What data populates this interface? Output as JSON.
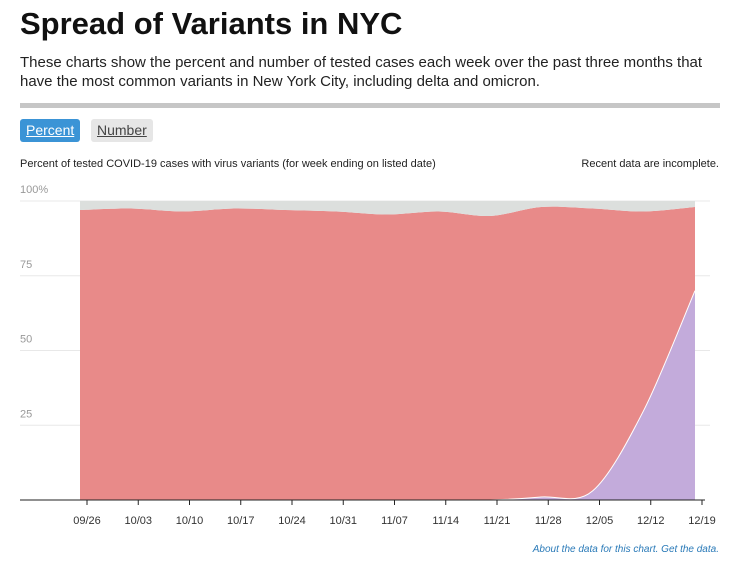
{
  "header": {
    "title": "Spread of Variants in NYC",
    "subtitle": "These charts show the percent and number of tested cases each week over the past three months that have the most common variants in New York City, including delta and omicron."
  },
  "toggles": {
    "percent_label": "Percent",
    "number_label": "Number",
    "active": "Percent"
  },
  "chart_label": "Percent of tested COVID-19 cases with virus variants (for week ending on listed date)",
  "chart_note": "Recent data are incomplete.",
  "footer": {
    "about": "About the data for this chart.",
    "get": "Get the data."
  },
  "colors": {
    "delta": "#e88a89",
    "omicron": "#c3abdb",
    "other": "#dcdfdd",
    "grid": "#e8e8e8",
    "axis": "#222222"
  },
  "chart_data": {
    "type": "area",
    "stacked": true,
    "x": [
      "09/26",
      "10/03",
      "10/10",
      "10/17",
      "10/24",
      "10/31",
      "11/07",
      "11/14",
      "11/21",
      "11/28",
      "12/05",
      "12/12",
      "12/19"
    ],
    "ylim": [
      0,
      100
    ],
    "yticks": [
      25,
      50,
      75,
      100
    ],
    "ytick_labels": [
      "25",
      "50",
      "75",
      "100%"
    ],
    "grid": true,
    "series": [
      {
        "key": "omicron",
        "values": [
          0,
          0,
          0,
          0,
          0,
          0,
          0,
          0,
          0,
          1,
          3,
          30,
          70
        ]
      },
      {
        "key": "delta",
        "values": [
          97,
          97.5,
          96.5,
          97.5,
          97,
          96.5,
          95.5,
          96.5,
          95,
          97,
          94.5,
          66.5,
          28
        ]
      },
      {
        "key": "other",
        "values": [
          3,
          2.5,
          3.5,
          2.5,
          3,
          3.5,
          4.5,
          3.5,
          5,
          2,
          2.5,
          3.5,
          2
        ]
      }
    ]
  }
}
